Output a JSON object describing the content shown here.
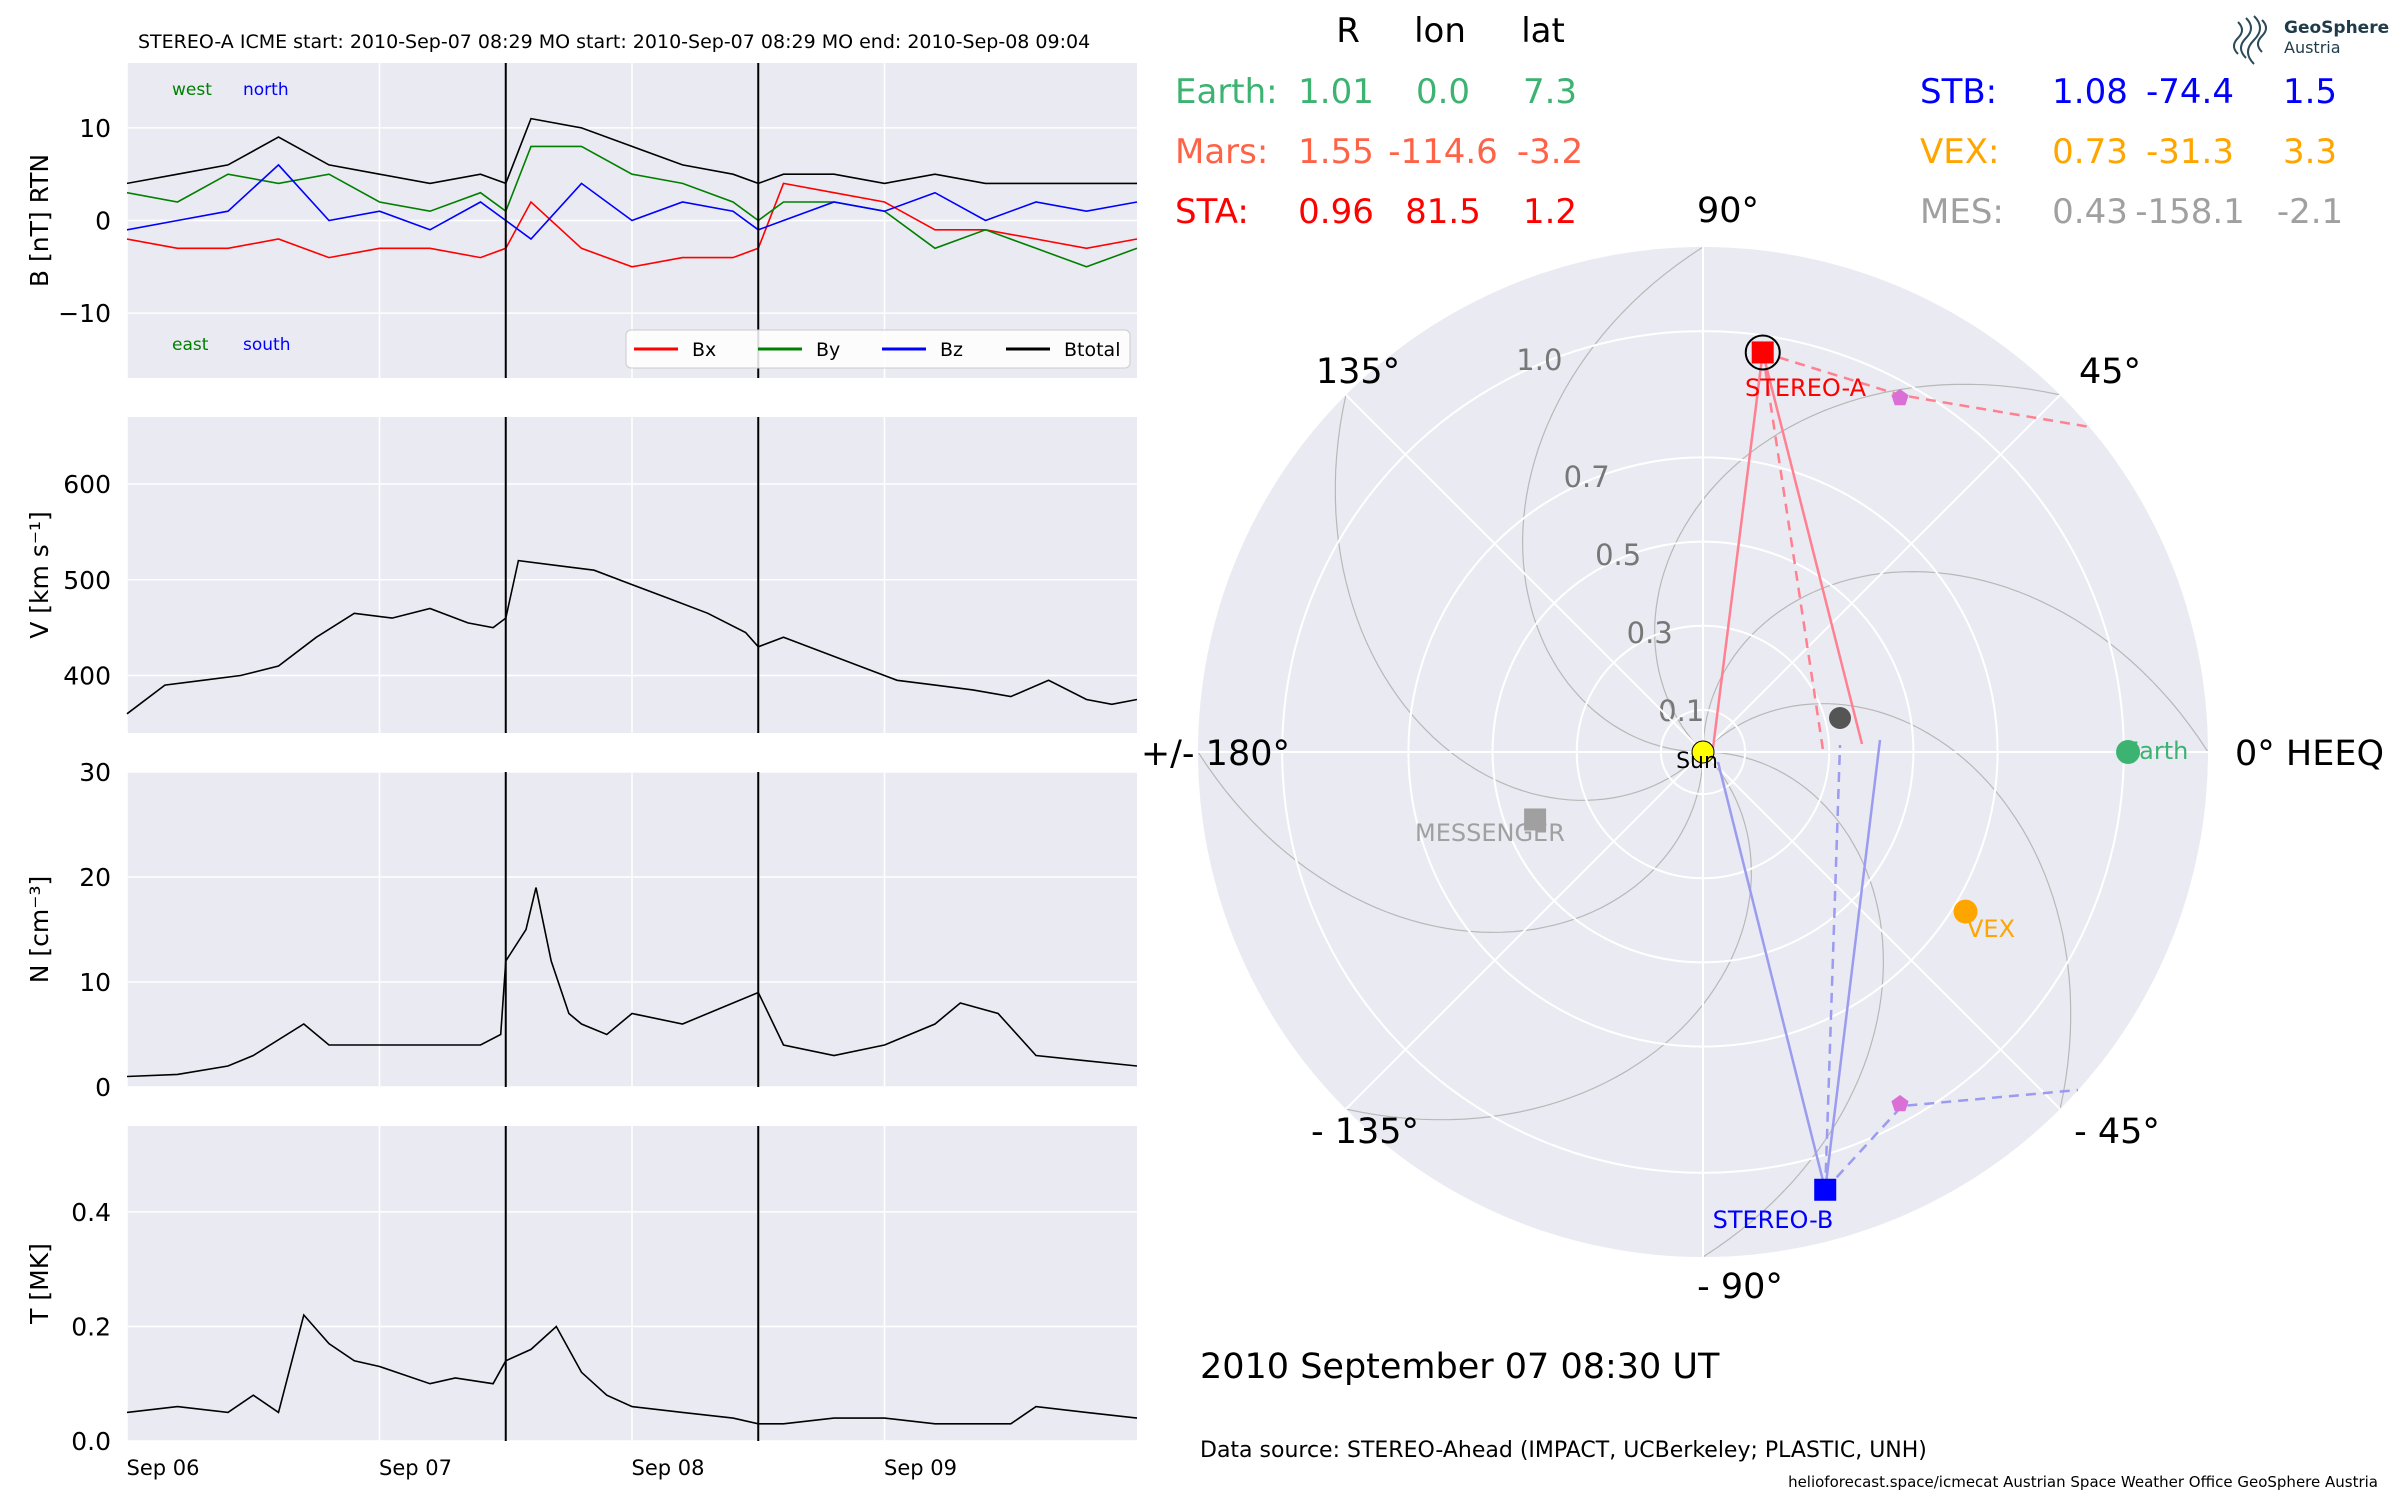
{
  "header": {
    "title": "STEREO-A    ICME start: 2010-Sep-07 08:29   MO start: 2010-Sep-07 08:29   MO end: 2010-Sep-08 09:04"
  },
  "logo": {
    "line1": "GeoSphere",
    "line2": "Austria"
  },
  "colors": {
    "plot_bg": "#eaeaf2",
    "bx": "#ff0000",
    "by": "#008000",
    "bz": "#0000ff",
    "btotal": "#000000",
    "earth": "#3cb371",
    "mars": "#ff6347",
    "sta": "#ff0000",
    "stb": "#0000ff",
    "vex": "#ffa500",
    "mes": "#a0a0a0",
    "sun": "#ffff00",
    "text": "#000000"
  },
  "chart_data": [
    {
      "type": "line",
      "name": "magnetic-field-panel",
      "ylabel": "B [nT] RTN",
      "ylim": [
        -17,
        17
      ],
      "yticks": [
        10,
        0,
        -10
      ],
      "ytick_labels": [
        "10",
        "0",
        "−10"
      ],
      "xlim": [
        0,
        4
      ],
      "grid": true,
      "annotations": {
        "west": "west",
        "north": "north",
        "east": "east",
        "south": "south"
      },
      "legend": {
        "placement": "lower-right",
        "entries": [
          "Bx",
          "By",
          "Bz",
          "Btotal"
        ]
      },
      "series": [
        {
          "name": "Bx",
          "color": "#ff0000",
          "x": [
            0,
            0.2,
            0.4,
            0.6,
            0.8,
            1.0,
            1.2,
            1.4,
            1.5,
            1.6,
            1.8,
            2.0,
            2.2,
            2.4,
            2.5,
            2.6,
            2.8,
            3.0,
            3.2,
            3.4,
            3.6,
            3.8,
            4.0
          ],
          "values": [
            -2,
            -3,
            -3,
            -2,
            -4,
            -3,
            -3,
            -4,
            -3,
            2,
            -3,
            -5,
            -4,
            -4,
            -3,
            4,
            3,
            2,
            -1,
            -1,
            -2,
            -3,
            -2
          ]
        },
        {
          "name": "By",
          "color": "#008000",
          "x": [
            0,
            0.2,
            0.4,
            0.6,
            0.8,
            1.0,
            1.2,
            1.4,
            1.5,
            1.6,
            1.8,
            2.0,
            2.2,
            2.4,
            2.5,
            2.6,
            2.8,
            3.0,
            3.2,
            3.4,
            3.6,
            3.8,
            4.0
          ],
          "values": [
            3,
            2,
            5,
            4,
            5,
            2,
            1,
            3,
            1,
            8,
            8,
            5,
            4,
            2,
            0,
            2,
            2,
            1,
            -3,
            -1,
            -3,
            -5,
            -3
          ]
        },
        {
          "name": "Bz",
          "color": "#0000ff",
          "x": [
            0,
            0.2,
            0.4,
            0.6,
            0.8,
            1.0,
            1.2,
            1.4,
            1.5,
            1.6,
            1.8,
            2.0,
            2.2,
            2.4,
            2.5,
            2.6,
            2.8,
            3.0,
            3.2,
            3.4,
            3.6,
            3.8,
            4.0
          ],
          "values": [
            -1,
            0,
            1,
            6,
            0,
            1,
            -1,
            2,
            0,
            -2,
            4,
            0,
            2,
            1,
            -1,
            0,
            2,
            1,
            3,
            0,
            2,
            1,
            2
          ]
        },
        {
          "name": "Btotal",
          "color": "#000000",
          "x": [
            0,
            0.2,
            0.4,
            0.6,
            0.8,
            1.0,
            1.2,
            1.4,
            1.5,
            1.6,
            1.8,
            2.0,
            2.2,
            2.4,
            2.5,
            2.6,
            2.8,
            3.0,
            3.2,
            3.4,
            3.6,
            3.8,
            4.0
          ],
          "values": [
            4,
            5,
            6,
            9,
            6,
            5,
            4,
            5,
            4,
            11,
            10,
            8,
            6,
            5,
            4,
            5,
            5,
            4,
            5,
            4,
            4,
            4,
            4
          ]
        }
      ],
      "vlines": [
        1.5,
        2.5
      ]
    },
    {
      "type": "line",
      "name": "speed-panel",
      "ylabel": "V [km s⁻¹]",
      "ylim": [
        340,
        670
      ],
      "yticks": [
        600,
        500,
        400
      ],
      "ytick_labels": [
        "600",
        "500",
        "400"
      ],
      "xlim": [
        0,
        4
      ],
      "grid": true,
      "series": [
        {
          "name": "V",
          "color": "#000000",
          "x": [
            0,
            0.15,
            0.3,
            0.45,
            0.6,
            0.75,
            0.9,
            1.05,
            1.2,
            1.35,
            1.45,
            1.5,
            1.55,
            1.7,
            1.85,
            2.0,
            2.15,
            2.3,
            2.45,
            2.5,
            2.6,
            2.75,
            2.9,
            3.05,
            3.2,
            3.35,
            3.5,
            3.65,
            3.8,
            3.9,
            4.0
          ],
          "values": [
            360,
            390,
            395,
            400,
            410,
            440,
            465,
            460,
            470,
            455,
            450,
            460,
            520,
            515,
            510,
            495,
            480,
            465,
            445,
            430,
            440,
            425,
            410,
            395,
            390,
            385,
            378,
            395,
            375,
            370,
            375
          ]
        }
      ],
      "vlines": [
        1.5,
        2.5
      ]
    },
    {
      "type": "line",
      "name": "density-panel",
      "ylabel": "N [cm⁻³]",
      "ylim": [
        0,
        30
      ],
      "yticks": [
        30,
        20,
        10,
        0
      ],
      "ytick_labels": [
        "30",
        "20",
        "10",
        "0"
      ],
      "xlim": [
        0,
        4
      ],
      "grid": true,
      "series": [
        {
          "name": "N",
          "color": "#000000",
          "x": [
            0,
            0.2,
            0.4,
            0.5,
            0.7,
            0.8,
            1.0,
            1.2,
            1.4,
            1.48,
            1.5,
            1.58,
            1.62,
            1.68,
            1.75,
            1.8,
            1.9,
            2.0,
            2.2,
            2.4,
            2.5,
            2.6,
            2.8,
            3.0,
            3.2,
            3.3,
            3.45,
            3.6,
            3.8,
            4.0
          ],
          "values": [
            1,
            1.2,
            2,
            3,
            6,
            4,
            4,
            4,
            4,
            5,
            12,
            15,
            19,
            12,
            7,
            6,
            5,
            7,
            6,
            8,
            9,
            4,
            3,
            4,
            6,
            8,
            7,
            3,
            2.5,
            2
          ]
        }
      ],
      "vlines": [
        1.5,
        2.5
      ]
    },
    {
      "type": "line",
      "name": "temperature-panel",
      "ylabel": "T [MK]",
      "ylim": [
        0,
        0.55
      ],
      "yticks": [
        0.4,
        0.2,
        0.0
      ],
      "ytick_labels": [
        "0.4",
        "0.2",
        "0.0"
      ],
      "xlim": [
        0,
        4
      ],
      "xticks": [
        0,
        1,
        2,
        3
      ],
      "xtick_labels": [
        "Sep 06",
        "Sep 07",
        "Sep 08",
        "Sep 09"
      ],
      "grid": true,
      "series": [
        {
          "name": "T",
          "color": "#000000",
          "x": [
            0,
            0.2,
            0.4,
            0.5,
            0.6,
            0.7,
            0.8,
            0.9,
            1.0,
            1.2,
            1.3,
            1.45,
            1.5,
            1.6,
            1.7,
            1.8,
            1.9,
            2.0,
            2.2,
            2.4,
            2.5,
            2.6,
            2.8,
            3.0,
            3.2,
            3.4,
            3.5,
            3.6,
            3.8,
            4.0
          ],
          "values": [
            0.05,
            0.06,
            0.05,
            0.08,
            0.05,
            0.22,
            0.17,
            0.14,
            0.13,
            0.1,
            0.11,
            0.1,
            0.14,
            0.16,
            0.2,
            0.12,
            0.08,
            0.06,
            0.05,
            0.04,
            0.03,
            0.03,
            0.04,
            0.04,
            0.03,
            0.03,
            0.03,
            0.06,
            0.05,
            0.04
          ]
        }
      ],
      "vlines": [
        1.5,
        2.5
      ]
    },
    {
      "type": "polar",
      "name": "heeq-position-plot",
      "r_max": 1.2,
      "r_grid": [
        0.1,
        0.3,
        0.5,
        0.7,
        1.0
      ],
      "r_grid_labels": [
        "0.1",
        "0.3",
        "0.5",
        "0.7",
        "1.0"
      ],
      "angle_labels": [
        {
          "angle": 0,
          "text": "0° HEEQ"
        },
        {
          "angle": 45,
          "text": "45°"
        },
        {
          "angle": 90,
          "text": "90°"
        },
        {
          "angle": 135,
          "text": "135°"
        },
        {
          "angle": 180,
          "text": "+/- 180°"
        },
        {
          "angle": -135,
          "text": "- 135°"
        },
        {
          "angle": -90,
          "text": "- 90°"
        },
        {
          "angle": -45,
          "text": "- 45°"
        }
      ],
      "bodies": [
        {
          "name": "Sun",
          "r": 0.0,
          "lon": 0.0,
          "marker": "circle",
          "color": "#ffff00"
        },
        {
          "name": "Earth",
          "r": 1.01,
          "lon": 0.0,
          "marker": "circle",
          "color": "#3cb371"
        },
        {
          "name": "VEX",
          "r": 0.73,
          "lon": -31.3,
          "marker": "circle",
          "color": "#ffa500"
        },
        {
          "name": "MESSENGER",
          "r": 0.43,
          "lon": -158.1,
          "marker": "square",
          "color": "#a0a0a0"
        },
        {
          "name": "STEREO-A",
          "r": 0.96,
          "lon": 81.5,
          "marker": "square",
          "color": "#ff0000"
        },
        {
          "name": "STEREO-B",
          "r": 1.08,
          "lon": -74.4,
          "marker": "square",
          "color": "#0000ff"
        }
      ],
      "date_label": "2010 September 07  08:30 UT"
    }
  ],
  "positions_table": {
    "headers": [
      "R",
      "lon",
      "lat"
    ],
    "left": [
      {
        "label": "Earth:",
        "r": "1.01",
        "lon": "0.0",
        "lat": "7.3",
        "color": "#3cb371"
      },
      {
        "label": "Mars:",
        "r": "1.55",
        "lon": "-114.6",
        "lat": "-3.2",
        "color": "#ff6347"
      },
      {
        "label": "STA:",
        "r": "0.96",
        "lon": "81.5",
        "lat": "1.2",
        "color": "#ff0000"
      }
    ],
    "right": [
      {
        "label": "STB:",
        "r": "1.08",
        "lon": "-74.4",
        "lat": "1.5",
        "color": "#0000ff"
      },
      {
        "label": "VEX:",
        "r": "0.73",
        "lon": "-31.3",
        "lat": "3.3",
        "color": "#ffa500"
      },
      {
        "label": "MES:",
        "r": "0.43",
        "lon": "-158.1",
        "lat": "-2.1",
        "color": "#a0a0a0"
      }
    ]
  },
  "footer": {
    "data_source": "Data source: STEREO-Ahead (IMPACT, UCBerkeley; PLASTIC, UNH)",
    "credits": "helioforecast.space/icmecat   Austrian Space Weather Office   GeoSphere Austria"
  }
}
